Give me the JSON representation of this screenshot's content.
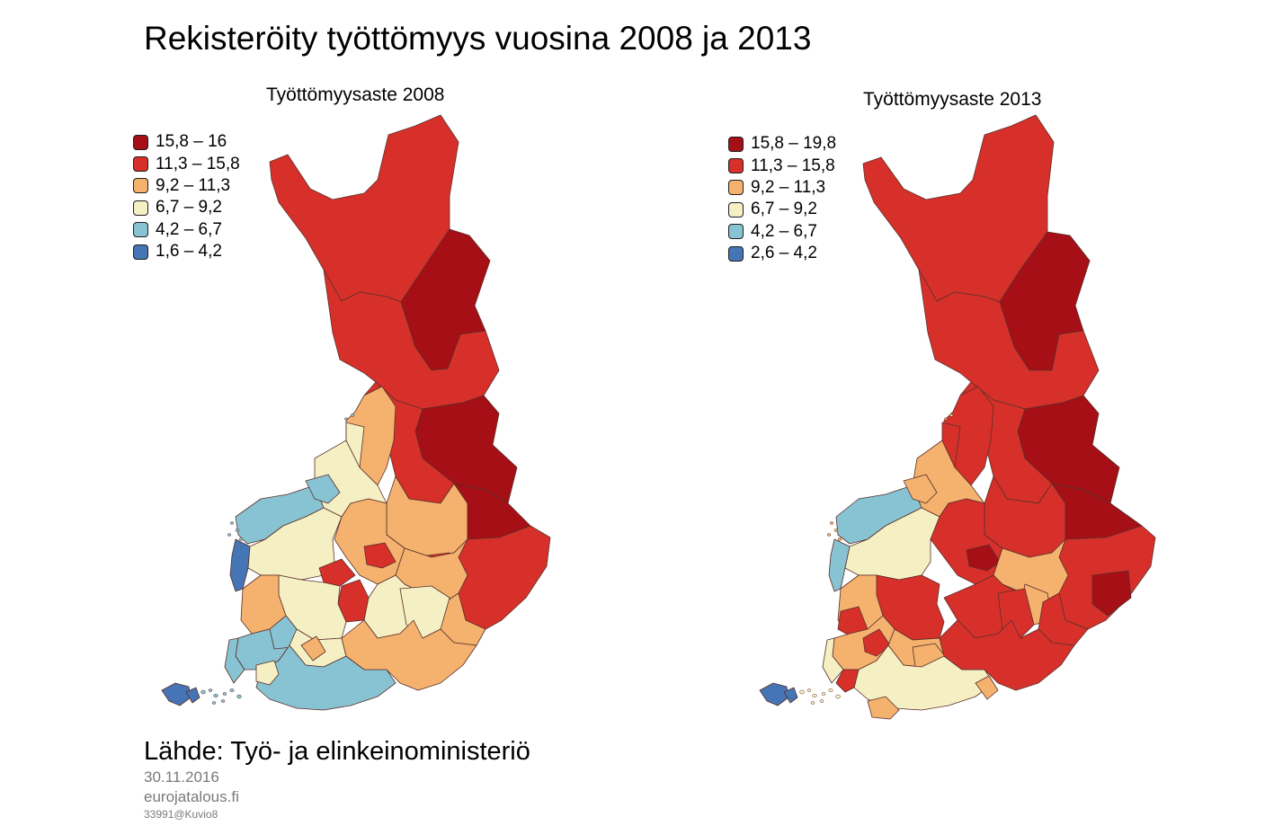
{
  "title": "Rekisteröity työttömyys vuosina 2008 ja 2013",
  "colors": {
    "c1": "#a50f15",
    "c2": "#d7302a",
    "c3": "#f4b26e",
    "c4": "#f5efc4",
    "c5": "#87c3d2",
    "c6": "#4575b4",
    "border": "#5a2f2a"
  },
  "maps": [
    {
      "title": "Työttömyysaste 2008",
      "legend": [
        {
          "label": "15,8 – 16",
          "color": "#a50f15"
        },
        {
          "label": "11,3 – 15,8",
          "color": "#d7302a"
        },
        {
          "label": "9,2 – 11,3",
          "color": "#f4b26e"
        },
        {
          "label": "6,7 – 9,2",
          "color": "#f5efc4"
        },
        {
          "label": "4,2 – 6,7",
          "color": "#87c3d2"
        },
        {
          "label": "1,6 – 4,2",
          "color": "#4575b4"
        }
      ]
    },
    {
      "title": "Työttömyysaste 2013",
      "legend": [
        {
          "label": "15,8 – 19,8",
          "color": "#a50f15"
        },
        {
          "label": "11,3 – 15,8",
          "color": "#d7302a"
        },
        {
          "label": "9,2 – 11,3",
          "color": "#f4b26e"
        },
        {
          "label": "6,7 – 9,2",
          "color": "#f5efc4"
        },
        {
          "label": "4,2 – 6,7",
          "color": "#87c3d2"
        },
        {
          "label": "2,6 – 4,2",
          "color": "#4575b4"
        }
      ]
    }
  ],
  "source": "Lähde: Työ- ja elinkeinoministeriö",
  "date": "30.11.2016",
  "site": "eurojatalous.fi",
  "code": "33991@Kuvio8"
}
